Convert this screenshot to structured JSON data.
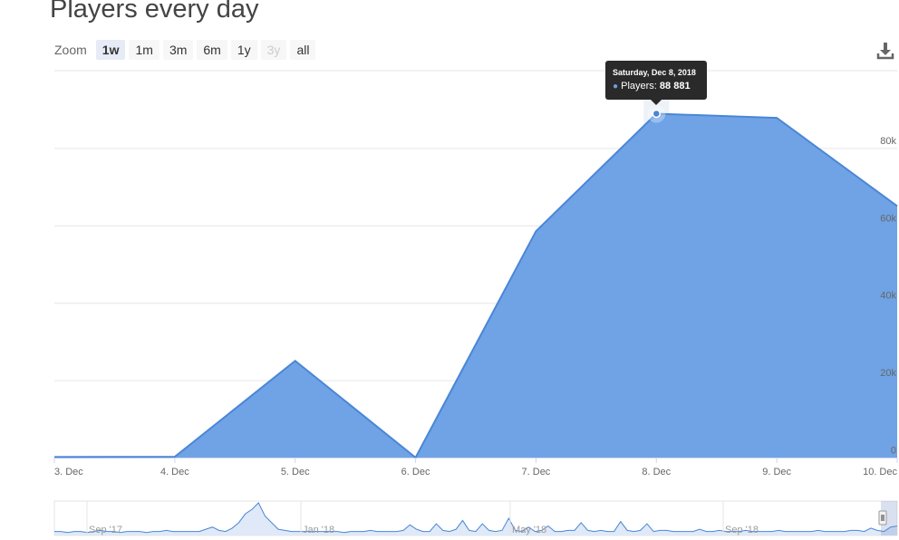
{
  "page": {
    "title": "Players every day"
  },
  "zoom": {
    "label": "Zoom",
    "buttons": [
      {
        "label": "1w",
        "state": "active"
      },
      {
        "label": "1m",
        "state": "normal"
      },
      {
        "label": "3m",
        "state": "normal"
      },
      {
        "label": "6m",
        "state": "normal"
      },
      {
        "label": "1y",
        "state": "normal"
      },
      {
        "label": "3y",
        "state": "disabled"
      },
      {
        "label": "all",
        "state": "normal"
      }
    ]
  },
  "toolbar": {
    "download_icon": "download-icon"
  },
  "tooltip": {
    "date": "Saturday, Dec 8, 2018",
    "series": "Players",
    "value": "88 881"
  },
  "colors": {
    "area_fill": "#6fa3e5",
    "line": "#4a86d6",
    "grid": "#e6e6e6",
    "tooltip_bg": "#2a2a2a"
  },
  "chart_data": {
    "type": "area",
    "x": [
      "3. Dec",
      "4. Dec",
      "5. Dec",
      "6. Dec",
      "7. Dec",
      "8. Dec",
      "9. Dec",
      "10. Dec"
    ],
    "series": [
      {
        "name": "Players",
        "values": [
          150,
          200,
          25000,
          0,
          58500,
          88881,
          87800,
          65000
        ]
      }
    ],
    "ylim": [
      0,
      100000
    ],
    "y_ticks": [
      "0",
      "20k",
      "40k",
      "60k",
      "80k"
    ],
    "y_tick_values": [
      0,
      20000,
      40000,
      60000,
      80000
    ],
    "highlighted": {
      "category": "8. Dec"
    },
    "grid": true,
    "title": "Players every day",
    "xlabel": "",
    "ylabel": ""
  },
  "navigator": {
    "labels": [
      "Sep '17",
      "Jan '18",
      "May '18",
      "Sep '18"
    ],
    "values": [
      2,
      2,
      1,
      2,
      2,
      1,
      2,
      3,
      2,
      2,
      1,
      2,
      2,
      2,
      1,
      2,
      2,
      3,
      2,
      2,
      2,
      2,
      2,
      4,
      6,
      3,
      2,
      5,
      10,
      18,
      22,
      28,
      16,
      10,
      4,
      3,
      2,
      2,
      2,
      2,
      2,
      2,
      2,
      2,
      1,
      2,
      2,
      2,
      3,
      2,
      2,
      2,
      2,
      3,
      8,
      4,
      2,
      2,
      9,
      3,
      2,
      4,
      12,
      3,
      2,
      9,
      3,
      2,
      3,
      14,
      3,
      2,
      6,
      2,
      3,
      7,
      2,
      2,
      3,
      3,
      10,
      3,
      2,
      3,
      2,
      2,
      11,
      3,
      2,
      3,
      9,
      2,
      3,
      3,
      2,
      2,
      2,
      2,
      4,
      2,
      2,
      3,
      2,
      2,
      2,
      3,
      2,
      2,
      2,
      2,
      3,
      2,
      2,
      2,
      2,
      2,
      3,
      2,
      2,
      2,
      2,
      3,
      3,
      2,
      5,
      3,
      2,
      6,
      7
    ]
  }
}
